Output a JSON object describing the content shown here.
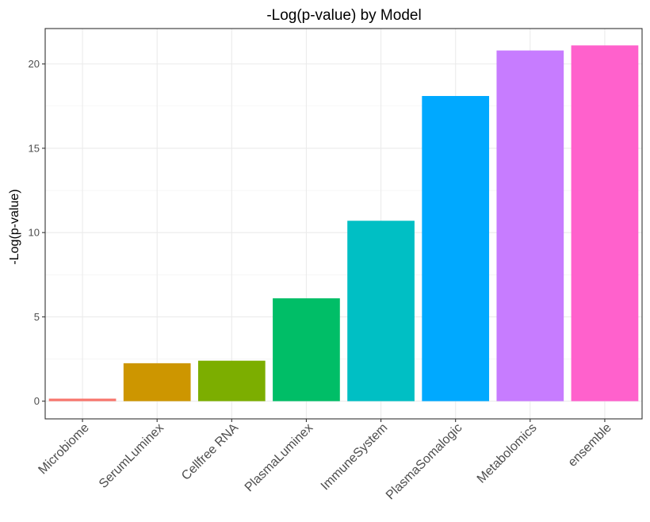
{
  "chart_data": {
    "type": "bar",
    "title": "-Log(p-value) by Model",
    "xlabel": "",
    "ylabel": "-Log(p-value)",
    "categories": [
      "Microbiome",
      "SerumLuminex",
      "Cellfree RNA",
      "PlasmaLuminex",
      "ImmuneSystem",
      "PlasmaSomalogic",
      "Metabolomics",
      "ensemble"
    ],
    "values": [
      0.15,
      2.25,
      2.4,
      6.1,
      10.7,
      18.1,
      20.8,
      21.1
    ],
    "colors": [
      "#F8766D",
      "#CD9600",
      "#7CAE00",
      "#00BE67",
      "#00BFC4",
      "#00A9FF",
      "#C77CFF",
      "#FF61CC"
    ],
    "ylim": [
      -1.05,
      22.1
    ],
    "yticks": [
      0,
      5,
      10,
      15,
      20
    ],
    "grid": true,
    "legend": "none"
  }
}
